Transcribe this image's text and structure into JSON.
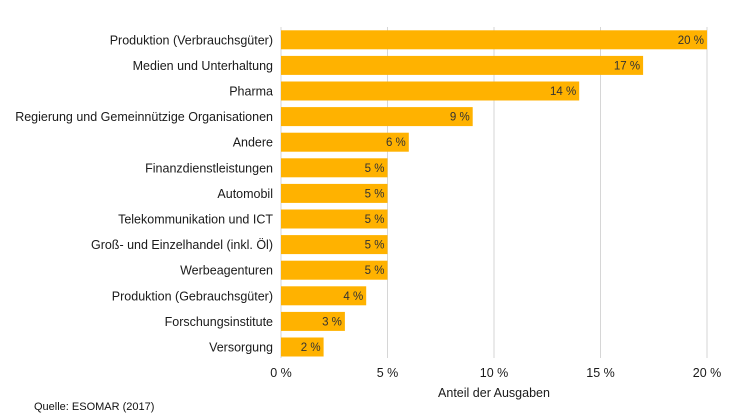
{
  "chart_data": {
    "type": "bar",
    "orientation": "horizontal",
    "categories": [
      "Produktion (Verbrauchsgüter)",
      "Medien und Unterhaltung",
      "Pharma",
      "Regierung und Gemeinnützige Organisationen",
      "Andere",
      "Finanzdienstleistungen",
      "Automobil",
      "Telekommunikation und ICT",
      "Groß- und Einzelhandel (inkl. Öl)",
      "Werbeagenturen",
      "Produktion (Gebrauchsgüter)",
      "Forschungsinstitute",
      "Versorgung"
    ],
    "values": [
      20,
      17,
      14,
      9,
      6,
      5,
      5,
      5,
      5,
      5,
      4,
      3,
      2
    ],
    "data_labels": [
      "20 %",
      "17 %",
      "14 %",
      "9 %",
      "6 %",
      "5 %",
      "5 %",
      "5 %",
      "5 %",
      "5 %",
      "4 %",
      "3 %",
      "2 %"
    ],
    "xlabel": "Anteil der Ausgaben",
    "xlim": [
      0,
      20
    ],
    "x_ticks": [
      0,
      5,
      10,
      15,
      20
    ],
    "x_tick_labels": [
      "0 %",
      "5 %",
      "10 %",
      "15 %",
      "20 %"
    ],
    "grid": "vertical",
    "bar_color": "#FFB200",
    "grid_color": "#d6d6d6"
  },
  "source": "Quelle: ESOMAR (2017)"
}
